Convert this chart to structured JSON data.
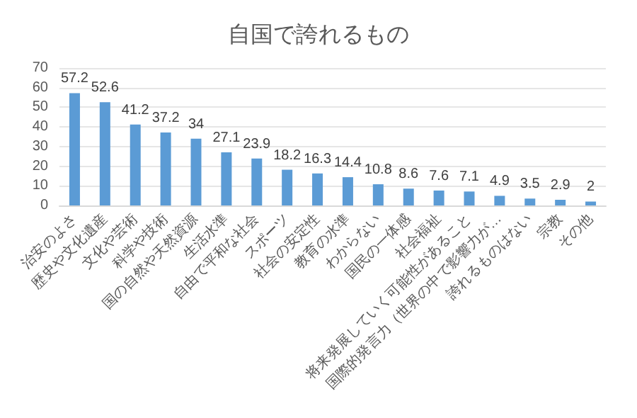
{
  "chart_data": {
    "type": "bar",
    "title": "自国で誇れるもの",
    "categories": [
      "治安のよさ",
      "歴史や文化遺産",
      "文化や芸術",
      "科学や技術",
      "国の自然や天然資源",
      "生活水準",
      "自由で平和な社会",
      "スポーツ",
      "社会の安定性",
      "教育の水準",
      "わからない",
      "国民の一体感",
      "社会福祉",
      "将来発展していく可能性があること",
      "国際的発言力（世界の中で影響力が…",
      "誇れるものはない",
      "宗教",
      "その他"
    ],
    "values": [
      57.2,
      52.6,
      41.2,
      37.2,
      34,
      27.1,
      23.9,
      18.2,
      16.3,
      14.4,
      10.8,
      8.6,
      7.6,
      7.1,
      4.9,
      3.5,
      2.9,
      2
    ],
    "color": "#5b9bd5",
    "ylim": [
      0,
      70
    ],
    "yticks": [
      0,
      10,
      20,
      30,
      40,
      50,
      60,
      70
    ],
    "grid": "y",
    "data_labels": true
  }
}
